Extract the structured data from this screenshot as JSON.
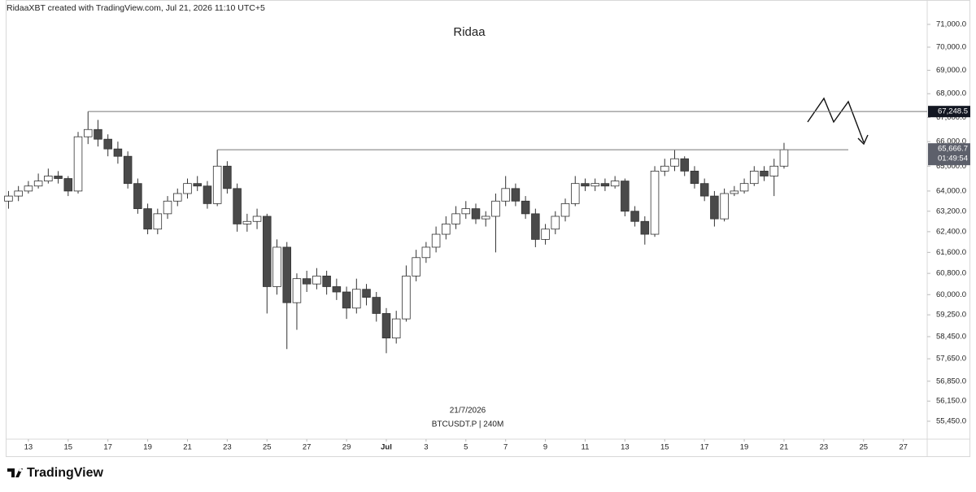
{
  "header": {
    "credit": "RidaaXBT created with TradingView.com, Jul 21, 2026 11:10 UTC+5",
    "logo": "TradingView"
  },
  "chart_data": {
    "type": "candlestick",
    "title": "Ridaa",
    "date_label": "21/7/2026",
    "symbol_label": "BTCUSDT.P | 240M",
    "up_color": "#ffffff",
    "down_color": "#4a4a4a",
    "log_scale": true,
    "x": [
      12.0,
      12.5,
      13.0,
      13.5,
      14.0,
      14.5,
      15.0,
      15.5,
      16.0,
      16.5,
      17.0,
      17.5,
      18.0,
      18.5,
      19.0,
      19.5,
      20.0,
      20.5,
      21.0,
      21.5,
      22.0,
      22.5,
      23.0,
      23.5,
      24.0,
      24.5,
      25.0,
      25.5,
      26.0,
      26.5,
      27.0,
      27.5,
      28.0,
      28.5,
      29.0,
      29.5,
      30.0,
      30.5,
      31.0,
      31.5,
      32.0,
      32.5,
      33.0,
      33.5,
      34.0,
      34.5,
      35.0,
      35.5,
      36.0,
      36.5,
      37.0,
      37.5,
      38.0,
      38.5,
      39.0,
      39.5,
      40.0,
      40.5,
      41.0,
      41.5,
      42.0,
      42.5,
      43.0,
      43.5,
      44.0,
      44.5,
      45.0,
      45.5,
      46.0,
      46.5,
      47.0,
      47.5,
      48.0,
      48.5,
      49.0,
      49.5,
      50.0,
      50.5,
      51.0
    ],
    "open": [
      63600,
      63800,
      64000,
      64200,
      64400,
      64600,
      64500,
      64000,
      66200,
      66500,
      66100,
      65700,
      65400,
      64300,
      63300,
      62500,
      63100,
      63600,
      63900,
      64300,
      64200,
      63500,
      65000,
      64100,
      62700,
      62800,
      63000,
      60300,
      61800,
      59700,
      60600,
      60400,
      60700,
      60300,
      60100,
      59500,
      60200,
      59900,
      59300,
      58400,
      59100,
      60700,
      61400,
      61800,
      62300,
      62700,
      63100,
      63300,
      62900,
      63000,
      63600,
      64100,
      63600,
      63100,
      62100,
      62500,
      63000,
      63500,
      64300,
      64200,
      64300,
      64200,
      64400,
      63200,
      62800,
      62300,
      64800,
      65000,
      65300,
      64800,
      64300,
      63800,
      62900,
      63900,
      64000,
      64300,
      64800,
      64600,
      65000
    ],
    "high": [
      64000,
      64200,
      64400,
      64700,
      64900,
      64800,
      64600,
      66400,
      67248.5,
      66900,
      66300,
      66000,
      65600,
      64500,
      63500,
      63300,
      63800,
      64100,
      64500,
      64600,
      64400,
      65666.7,
      65200,
      64300,
      63100,
      63300,
      63100,
      62100,
      62000,
      60800,
      60900,
      61000,
      60900,
      60600,
      60300,
      60600,
      60400,
      60100,
      59500,
      59400,
      61100,
      61700,
      62000,
      62600,
      63000,
      63400,
      63600,
      63500,
      63200,
      63900,
      64600,
      64300,
      63800,
      63300,
      62700,
      63200,
      63700,
      64600,
      64500,
      64500,
      64500,
      64600,
      64500,
      63400,
      63000,
      65000,
      65300,
      65650,
      65400,
      65000,
      64500,
      64000,
      64100,
      64200,
      64500,
      65000,
      65000,
      65300,
      65950
    ],
    "low": [
      63300,
      63600,
      63900,
      64100,
      64300,
      64300,
      63800,
      63900,
      65900,
      65800,
      65400,
      65100,
      64100,
      63100,
      62300,
      62300,
      62900,
      63400,
      63700,
      64000,
      63300,
      63400,
      63900,
      62400,
      62400,
      62500,
      59300,
      60000,
      58000,
      58700,
      60100,
      60200,
      60000,
      59800,
      59100,
      59300,
      59600,
      59000,
      57850,
      58200,
      59000,
      60500,
      61200,
      61600,
      62100,
      62500,
      62900,
      62700,
      62600,
      61600,
      63400,
      63400,
      62900,
      61800,
      61900,
      62300,
      62800,
      63400,
      64000,
      64000,
      64000,
      64100,
      63000,
      62600,
      61900,
      62200,
      64600,
      64800,
      64600,
      64100,
      63600,
      62600,
      62800,
      63800,
      63900,
      64200,
      64400,
      63800,
      64900
    ],
    "close": [
      63800,
      64000,
      64200,
      64400,
      64600,
      64500,
      64000,
      66200,
      66500,
      66100,
      65700,
      65400,
      64300,
      63300,
      62500,
      63100,
      63600,
      63900,
      64300,
      64200,
      63500,
      65000,
      64100,
      62700,
      62800,
      63000,
      60300,
      61800,
      59700,
      60600,
      60400,
      60700,
      60300,
      60100,
      59500,
      60200,
      59900,
      59300,
      58400,
      59100,
      60700,
      61400,
      61800,
      62300,
      62700,
      63100,
      63300,
      62900,
      63000,
      63600,
      64100,
      63600,
      63100,
      62100,
      62500,
      63000,
      63500,
      64300,
      64200,
      64300,
      64200,
      64400,
      63200,
      62800,
      62300,
      64800,
      65000,
      65300,
      64800,
      64300,
      63800,
      62900,
      63900,
      64000,
      64300,
      64800,
      64600,
      65000,
      65666.7
    ],
    "price_lines": [
      {
        "value": 67248.5,
        "label": "67,248.5"
      },
      {
        "value": 65666.7,
        "label": "65,666.7"
      }
    ],
    "countdown": "01:49:54",
    "xlim": [
      11.9,
      58.2
    ],
    "xticks": [
      13,
      15,
      17,
      19,
      21,
      23,
      25,
      27,
      29,
      {
        "value": 31,
        "label": "Jul"
      },
      {
        "value": 33,
        "label": "3"
      },
      {
        "value": 35,
        "label": "5"
      },
      {
        "value": 37,
        "label": "7"
      },
      {
        "value": 39,
        "label": "9"
      },
      {
        "value": 41,
        "label": "11"
      },
      {
        "value": 43,
        "label": "13"
      },
      {
        "value": 45,
        "label": "15"
      },
      {
        "value": 47,
        "label": "17"
      },
      {
        "value": 49,
        "label": "19"
      },
      {
        "value": 51,
        "label": "21"
      },
      {
        "value": 53,
        "label": "23"
      },
      {
        "value": 55,
        "label": "25"
      },
      {
        "value": 57,
        "label": "27"
      }
    ],
    "ylim": [
      54835,
      71796
    ],
    "yticks": [
      {
        "value": 71000,
        "label": "71,000.0"
      },
      {
        "value": 70000,
        "label": "70,000.0"
      },
      {
        "value": 69000,
        "label": "69,000.0"
      },
      {
        "value": 68000,
        "label": "68,000.0"
      },
      {
        "value": 67000,
        "label": "67,000.0"
      },
      {
        "value": 66000,
        "label": "66,000.0"
      },
      {
        "value": 65000,
        "label": "65,000.0"
      },
      {
        "value": 64000,
        "label": "64,000.0"
      },
      {
        "value": 63200,
        "label": "63,200.0"
      },
      {
        "value": 62400,
        "label": "62,400.0"
      },
      {
        "value": 61600,
        "label": "61,600.0"
      },
      {
        "value": 60800,
        "label": "60,800.0"
      },
      {
        "value": 60000,
        "label": "60,000.0"
      },
      {
        "value": 59250,
        "label": "59,250.0"
      },
      {
        "value": 58450,
        "label": "58,450.0"
      },
      {
        "value": 57650,
        "label": "57,650.0"
      },
      {
        "value": 56850,
        "label": "56,850.0"
      },
      {
        "value": 56150,
        "label": "56,150.0"
      },
      {
        "value": 55450,
        "label": "55,450.0"
      }
    ]
  }
}
